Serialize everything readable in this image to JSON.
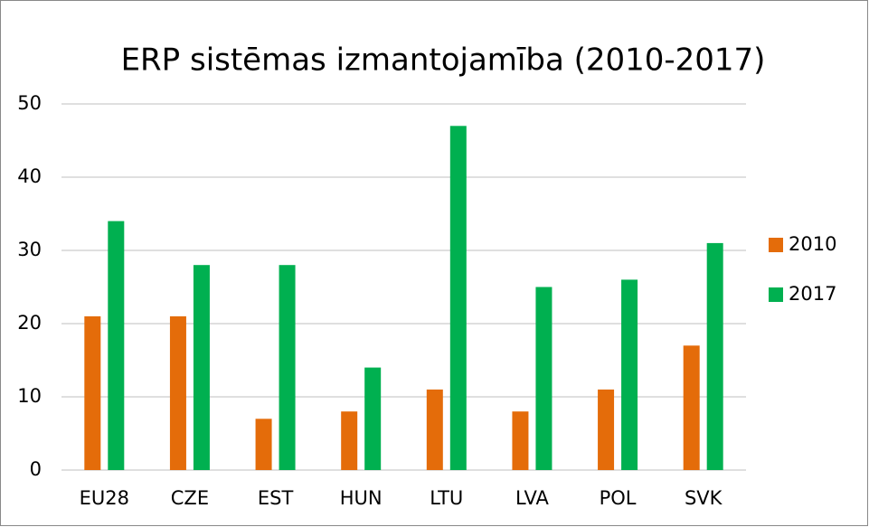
{
  "chart_data": {
    "type": "bar",
    "title": "ERP sistēmas izmantojamība (2010-2017)",
    "categories": [
      "EU28",
      "CZE",
      "EST",
      "HUN",
      "LTU",
      "LVA",
      "POL",
      "SVK"
    ],
    "series": [
      {
        "name": "2010",
        "color": "#e46c0a",
        "values": [
          21,
          21,
          7,
          8,
          11,
          8,
          11,
          17
        ]
      },
      {
        "name": "2017",
        "color": "#00b050",
        "values": [
          34,
          28,
          28,
          14,
          47,
          25,
          26,
          31
        ]
      }
    ],
    "ylim": [
      0,
      50
    ],
    "yticks": [
      0,
      10,
      20,
      30,
      40,
      50
    ],
    "grid": true,
    "legend": "right"
  }
}
